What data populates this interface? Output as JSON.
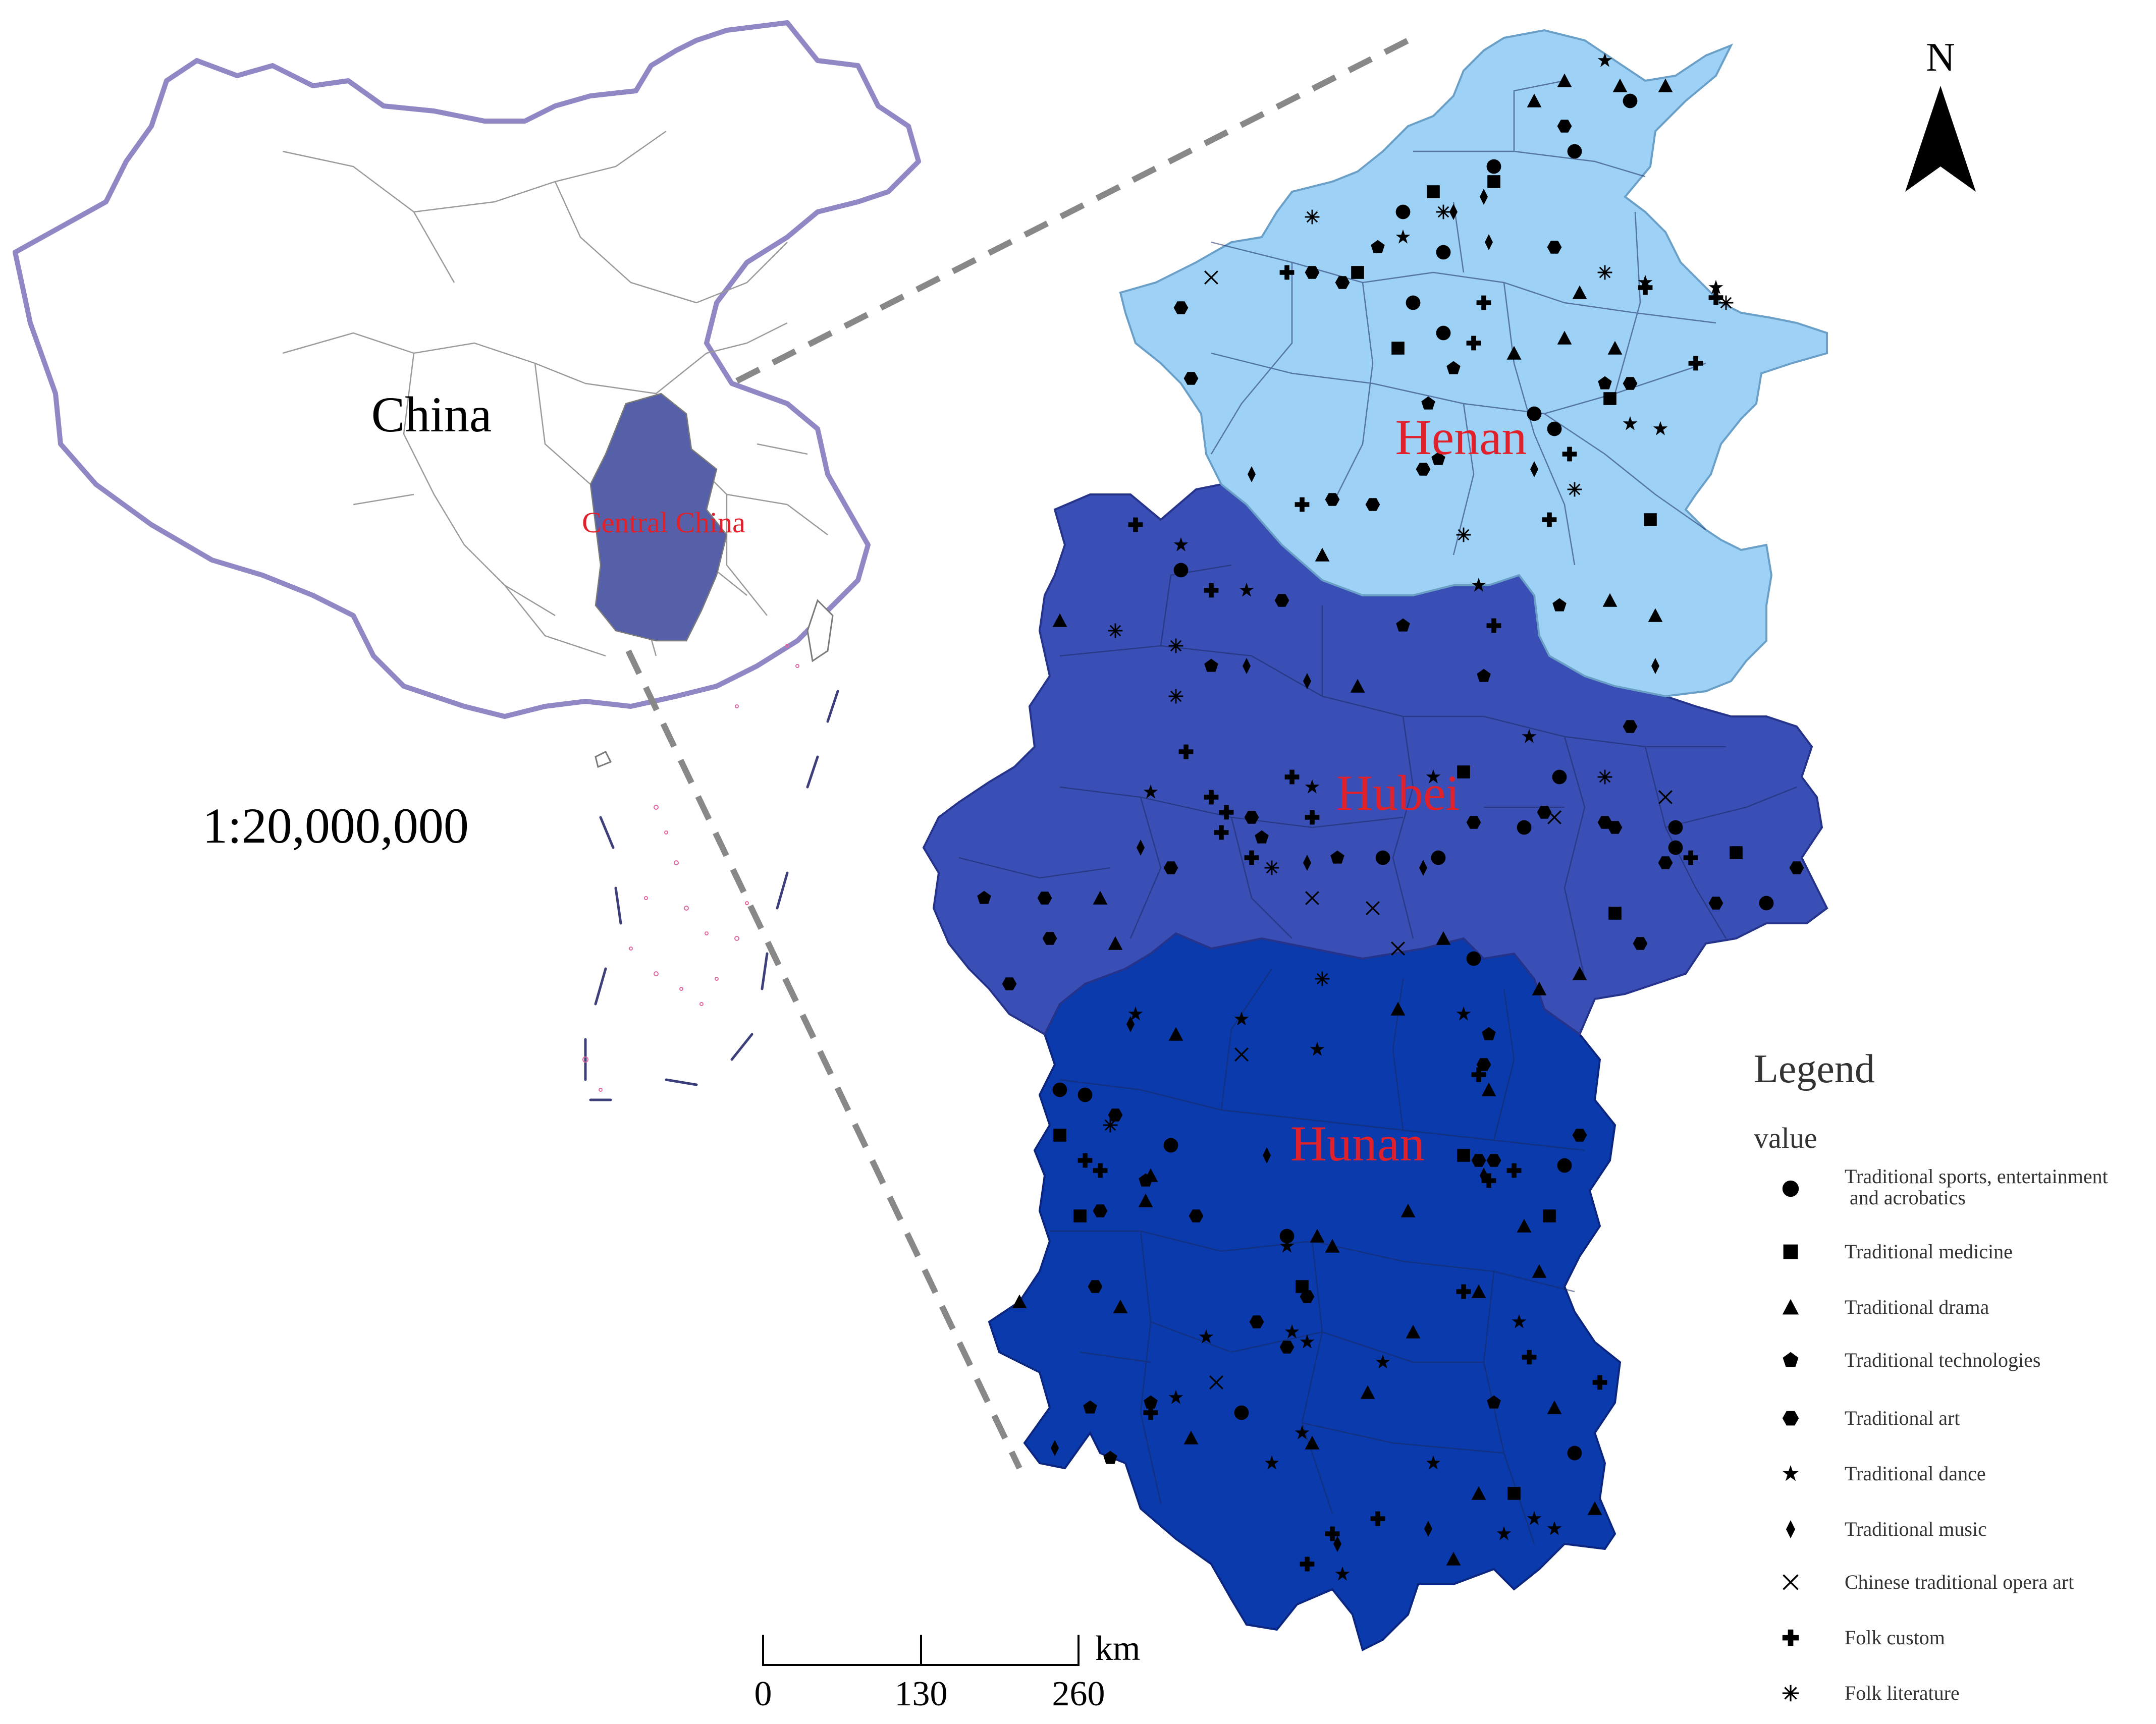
{
  "inset": {
    "country_label": "China",
    "region_label": "Central China",
    "scale_ratio": "1:20,000,000"
  },
  "provinces": {
    "henan": {
      "label": "Henan",
      "color": "#9dd1f5"
    },
    "hubei": {
      "label": "Hubei",
      "color": "#3a4fb5"
    },
    "hunan": {
      "label": "Hunan",
      "color": "#0a3aab"
    }
  },
  "label_color": "#e0202a",
  "highlight_color": "#5560a8",
  "north_arrow": {
    "label": "N"
  },
  "scale_bar": {
    "ticks": [
      "0",
      "130",
      "260"
    ],
    "unit": "km"
  },
  "legend": {
    "title": "Legend",
    "field": "value",
    "items": [
      {
        "symbol": "circle",
        "label": "Traditional sports, entertainment",
        "label2": "and acrobatics"
      },
      {
        "symbol": "square",
        "label": "Traditional medicine"
      },
      {
        "symbol": "triangle",
        "label": "Traditional drama"
      },
      {
        "symbol": "pentagon",
        "label": "Traditional technologies"
      },
      {
        "symbol": "hexagon",
        "label": "Traditional art"
      },
      {
        "symbol": "star",
        "label": "Traditional dance"
      },
      {
        "symbol": "diamond",
        "label": "Traditional music"
      },
      {
        "symbol": "x",
        "label": "Chinese traditional opera art"
      },
      {
        "symbol": "plus",
        "label": "Folk custom"
      },
      {
        "symbol": "asterisk",
        "label": "Folk literature"
      }
    ]
  }
}
